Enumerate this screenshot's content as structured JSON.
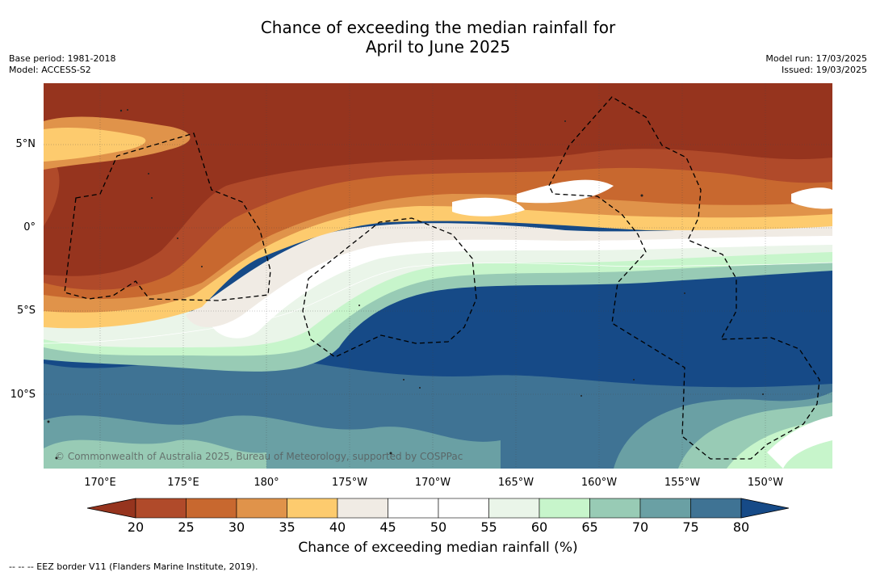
{
  "title_line1": "Chance of exceeding the median rainfall for",
  "title_line2": "April to June 2025",
  "base_period": "Base period: 1981-2018",
  "model": "Model: ACCESS-S2",
  "model_run": "Model run: 17/03/2025",
  "issued": "Issued: 19/03/2025",
  "copyright": "© Commonwealth of Australia 2025, Bureau of Meteorology, supported by COSPPac",
  "lat_labels": [
    "5°N",
    "0°",
    "5°S",
    "10°S"
  ],
  "lon_labels": [
    "170°E",
    "175°E",
    "180°",
    "175°W",
    "170°W",
    "165°W",
    "160°W",
    "155°W",
    "150°W"
  ],
  "colorbar": {
    "ticks": [
      "20",
      "25",
      "30",
      "35",
      "40",
      "45",
      "50",
      "55",
      "60",
      "65",
      "70",
      "75",
      "80"
    ],
    "title": "Chance of exceeding median rainfall (%)",
    "colors": [
      "#96341e",
      "#b04a2a",
      "#c8682f",
      "#e0934a",
      "#fdcb6e",
      "#f0ebe4",
      "#ffffff",
      "#ffffff",
      "#eaf5e9",
      "#c7f5cb",
      "#98cbb5",
      "#6aa0a4",
      "#3f7394",
      "#164a87"
    ]
  },
  "footnote": "-- -- -- EEZ border V11 (Flanders Marine Institute, 2019).",
  "colors": {
    "dry_strong": "#96341e",
    "dry": "#c8682f",
    "neutral": "#ffffff",
    "wet": "#98cbb5",
    "wet_strong": "#164a87"
  }
}
